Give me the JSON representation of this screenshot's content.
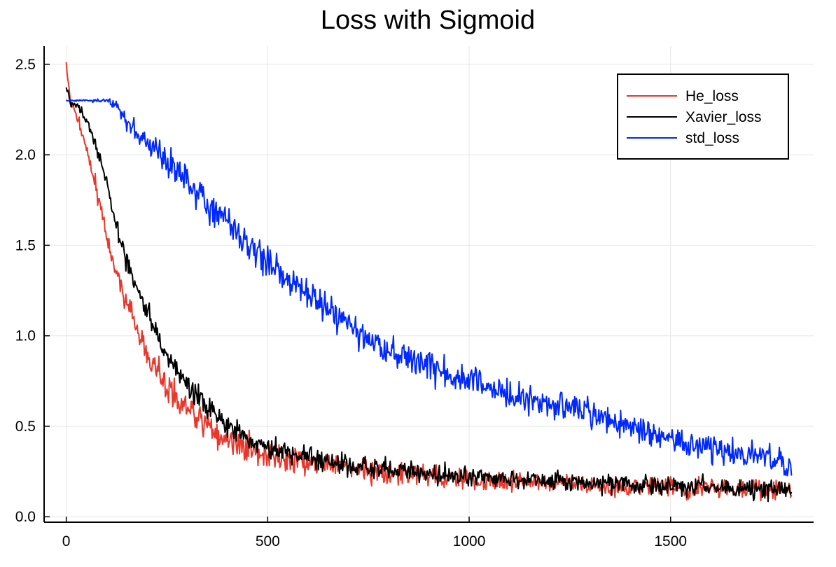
{
  "chart_data": {
    "type": "line",
    "title": "Loss with Sigmoid",
    "xlabel": "",
    "ylabel": "",
    "xlim": [
      -55,
      1855
    ],
    "ylim": [
      -0.03,
      2.6
    ],
    "xticks": [
      0,
      500,
      1000,
      1500
    ],
    "xtick_labels": [
      "0",
      "500",
      "1000",
      "1500"
    ],
    "yticks": [
      0.0,
      0.5,
      1.0,
      1.5,
      2.0,
      2.5
    ],
    "ytick_labels": [
      "0.0",
      "0.5",
      "1.0",
      "1.5",
      "2.0",
      "2.5"
    ],
    "grid": true,
    "legend_position": "top-right",
    "x_range": [
      0,
      1800
    ],
    "series": [
      {
        "name": "He_loss",
        "color": "#e8372b",
        "x": [
          0,
          10,
          25,
          50,
          75,
          100,
          125,
          150,
          175,
          200,
          250,
          300,
          350,
          400,
          450,
          500,
          600,
          700,
          800,
          900,
          1000,
          1100,
          1200,
          1300,
          1400,
          1500,
          1600,
          1700,
          1800
        ],
        "y": [
          2.5,
          2.3,
          2.22,
          2.05,
          1.8,
          1.55,
          1.35,
          1.18,
          1.03,
          0.9,
          0.72,
          0.6,
          0.5,
          0.43,
          0.38,
          0.35,
          0.3,
          0.27,
          0.25,
          0.23,
          0.21,
          0.2,
          0.19,
          0.18,
          0.17,
          0.165,
          0.16,
          0.155,
          0.15
        ],
        "noise": [
          0.02,
          0.02,
          0.03,
          0.04,
          0.05,
          0.06,
          0.06,
          0.07,
          0.07,
          0.07,
          0.07,
          0.07,
          0.07,
          0.07,
          0.07,
          0.07,
          0.06,
          0.06,
          0.06,
          0.06,
          0.06,
          0.05,
          0.05,
          0.05,
          0.05,
          0.05,
          0.05,
          0.05,
          0.05
        ]
      },
      {
        "name": "Xavier_loss",
        "color": "#000000",
        "x": [
          0,
          10,
          25,
          50,
          75,
          100,
          125,
          150,
          175,
          200,
          250,
          300,
          350,
          400,
          450,
          500,
          600,
          700,
          800,
          900,
          1000,
          1100,
          1200,
          1300,
          1400,
          1500,
          1600,
          1700,
          1800
        ],
        "y": [
          2.37,
          2.3,
          2.27,
          2.2,
          2.05,
          1.85,
          1.6,
          1.42,
          1.27,
          1.13,
          0.88,
          0.72,
          0.6,
          0.5,
          0.43,
          0.38,
          0.33,
          0.29,
          0.26,
          0.24,
          0.22,
          0.21,
          0.2,
          0.19,
          0.18,
          0.17,
          0.16,
          0.155,
          0.15
        ],
        "noise": [
          0.02,
          0.02,
          0.02,
          0.03,
          0.04,
          0.05,
          0.06,
          0.06,
          0.06,
          0.06,
          0.06,
          0.06,
          0.06,
          0.06,
          0.06,
          0.06,
          0.06,
          0.06,
          0.05,
          0.05,
          0.05,
          0.05,
          0.05,
          0.05,
          0.05,
          0.05,
          0.05,
          0.05,
          0.05
        ]
      },
      {
        "name": "std_loss",
        "color": "#0028ff",
        "x": [
          0,
          25,
          50,
          75,
          100,
          125,
          150,
          200,
          250,
          300,
          350,
          400,
          450,
          500,
          600,
          700,
          800,
          900,
          1000,
          1100,
          1200,
          1300,
          1400,
          1500,
          1600,
          1700,
          1800
        ],
        "y": [
          2.3,
          2.3,
          2.3,
          2.3,
          2.3,
          2.27,
          2.18,
          2.07,
          1.97,
          1.85,
          1.73,
          1.62,
          1.5,
          1.4,
          1.23,
          1.05,
          0.92,
          0.83,
          0.76,
          0.68,
          0.62,
          0.56,
          0.5,
          0.43,
          0.38,
          0.33,
          0.3
        ],
        "noise": [
          0.005,
          0.005,
          0.005,
          0.008,
          0.01,
          0.03,
          0.05,
          0.06,
          0.07,
          0.08,
          0.08,
          0.08,
          0.08,
          0.08,
          0.08,
          0.08,
          0.08,
          0.08,
          0.08,
          0.07,
          0.07,
          0.07,
          0.07,
          0.07,
          0.07,
          0.07,
          0.07
        ]
      }
    ]
  }
}
